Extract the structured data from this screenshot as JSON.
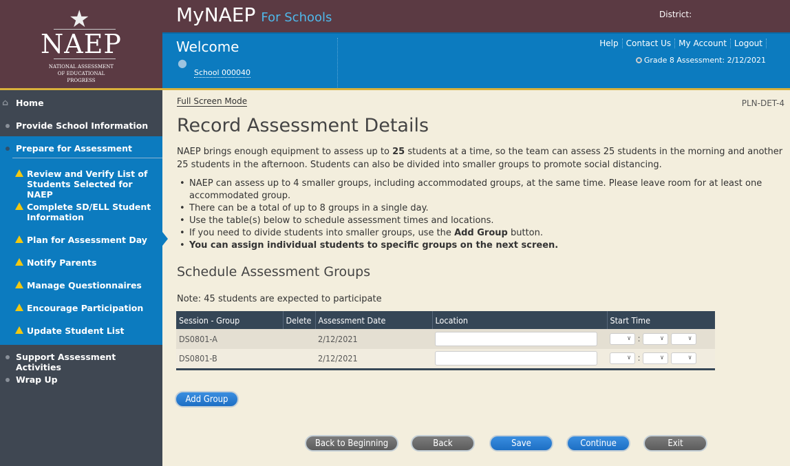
{
  "logo": {
    "star": "★",
    "name": "NAEP",
    "subtitle": [
      "NATIONAL ASSESSMENT",
      "OF EDUCATIONAL",
      "PROGRESS"
    ]
  },
  "header": {
    "app_title": "MyNAEP",
    "app_subtitle": "For Schools",
    "district_label": "District:",
    "welcome": "Welcome",
    "school": "School 000040",
    "links": [
      "Help",
      "Contact Us",
      "My Account",
      "Logout"
    ],
    "assessment": "Grade 8 Assessment: 2/12/2021"
  },
  "sidebar": {
    "items": [
      {
        "label": "Home",
        "icon": "home-icon"
      },
      {
        "label": "Provide School Information"
      },
      {
        "label": "Prepare for Assessment",
        "active": true
      },
      {
        "label": "Support Assessment Activities"
      },
      {
        "label": "Wrap Up"
      }
    ],
    "subitems": [
      "Review and Verify List of Students Selected for NAEP",
      "Complete SD/ELL Student Information",
      "Plan for Assessment Day",
      "Notify Parents",
      "Manage Questionnaires",
      "Encourage Participation",
      "Update Student List"
    ],
    "current_subitem": "Plan for Assessment Day"
  },
  "main": {
    "full_screen": "Full Screen Mode",
    "page_id": "PLN-DET-4",
    "title": "Record Assessment Details",
    "intro_pre": "NAEP brings enough equipment to assess up to ",
    "intro_bold": "25",
    "intro_post": " students at a time, so the team can assess 25 students in the morning and another 25 students in the afternoon. Students can also be divided into smaller groups to promote social distancing.",
    "bullets": [
      "NAEP can assess up to 4 smaller groups, including accommodated groups, at the same time. Please leave room for at least one accommodated group.",
      "There can be a total of up to 8 groups in a single day.",
      "Use the table(s) below to schedule assessment times and locations."
    ],
    "bullet4_pre": "If you need to divide students into smaller groups, use the ",
    "bullet4_bold": "Add Group",
    "bullet4_post": " button.",
    "bullet5": "You can assign individual students to specific groups on the next screen.",
    "section_title": "Schedule Assessment Groups",
    "note": "Note: 45 students are expected to participate",
    "table": {
      "headers": [
        "Session - Group",
        "Delete",
        "Assessment Date",
        "Location",
        "Start Time"
      ],
      "rows": [
        {
          "group": "DS0801-A",
          "date": "2/12/2021",
          "location": ""
        },
        {
          "group": "DS0801-B",
          "date": "2/12/2021",
          "location": ""
        }
      ],
      "time_sep": ":"
    },
    "add_group": "Add Group",
    "buttons": {
      "back_to_beginning": "Back to Beginning",
      "back": "Back",
      "save": "Save",
      "continue": "Continue",
      "exit": "Exit"
    }
  },
  "colors": {
    "maroon": "#5b3a43",
    "blue": "#0c7bbf",
    "sidebar": "#3f4752",
    "gold": "#d9b13b",
    "table_header": "#354656"
  }
}
